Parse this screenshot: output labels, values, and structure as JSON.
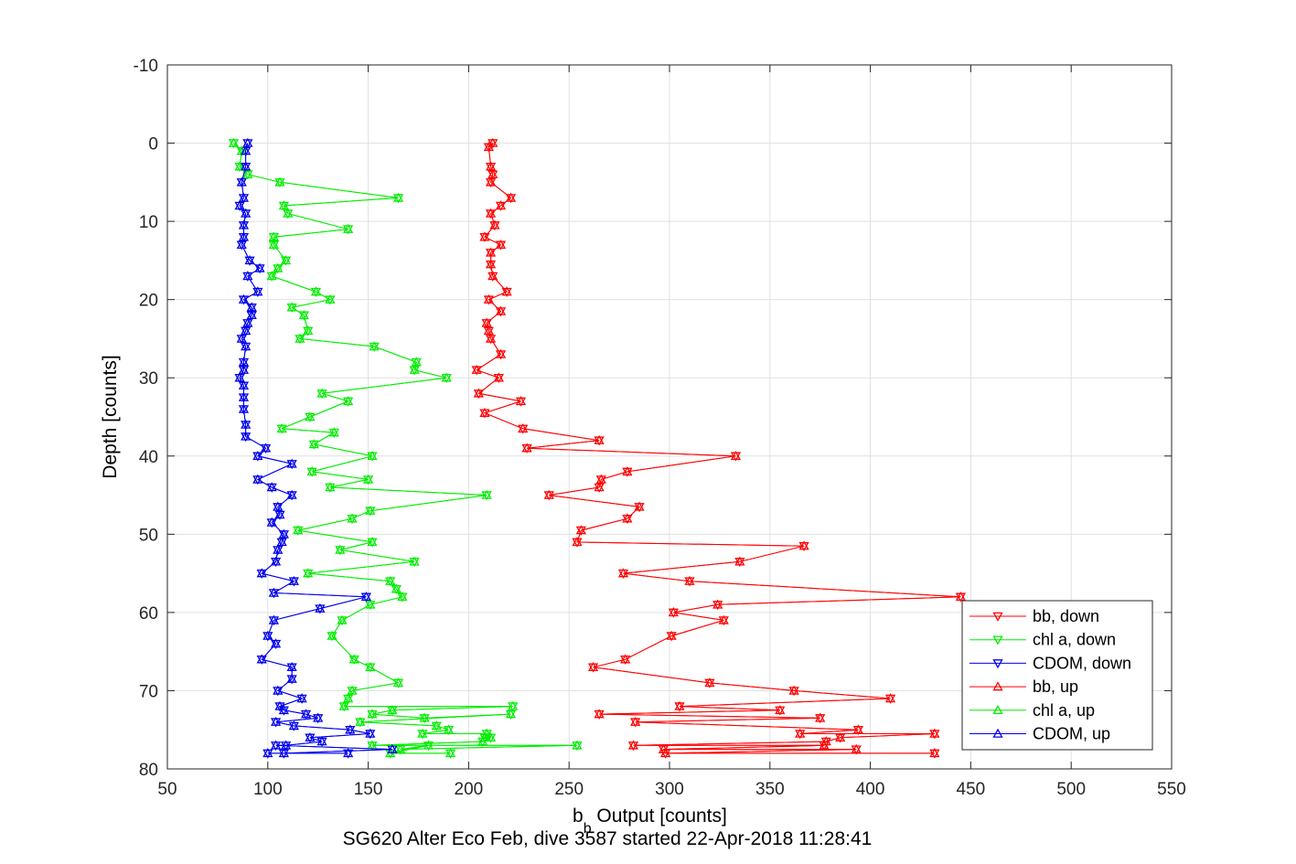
{
  "chart_data": {
    "type": "line",
    "xlabel_main": "b",
    "xlabel_sub": "b",
    "xlabel_rest": " Output [counts]",
    "ylabel": "Depth [counts]",
    "caption": "SG620 Alter Eco Feb, dive 3587 started 22-Apr-2018 11:28:41",
    "xlim": [
      50,
      550
    ],
    "ylim": [
      -10,
      80
    ],
    "y_reversed": true,
    "xticks": [
      50,
      100,
      150,
      200,
      250,
      300,
      350,
      400,
      450,
      500,
      550
    ],
    "yticks": [
      -10,
      0,
      10,
      20,
      30,
      40,
      50,
      60,
      70,
      80
    ],
    "grid": true,
    "legend_position": "bottom-right",
    "series": [
      {
        "name": "bb, down",
        "color": "#ff0000",
        "marker": "triangle-down",
        "points": [
          [
            212,
            0
          ],
          [
            210,
            0.5
          ],
          [
            211,
            3
          ],
          [
            212,
            4
          ],
          [
            211,
            5
          ],
          [
            221,
            7
          ],
          [
            216,
            8
          ],
          [
            211,
            9
          ],
          [
            213,
            10.5
          ],
          [
            208,
            12
          ],
          [
            216,
            13
          ],
          [
            211,
            14
          ],
          [
            211,
            15.5
          ],
          [
            212,
            17
          ],
          [
            219,
            19
          ],
          [
            210,
            20
          ],
          [
            216,
            21.5
          ],
          [
            209,
            23
          ],
          [
            210,
            24
          ],
          [
            211,
            25
          ],
          [
            216,
            27
          ],
          [
            204,
            29
          ],
          [
            215,
            30
          ],
          [
            205,
            32
          ],
          [
            226,
            33
          ],
          [
            208,
            34.5
          ],
          [
            227,
            36.5
          ],
          [
            265,
            38
          ],
          [
            229,
            39
          ],
          [
            333,
            40
          ],
          [
            279,
            42
          ],
          [
            266,
            43
          ],
          [
            265,
            44
          ],
          [
            240,
            45
          ],
          [
            285,
            46.5
          ],
          [
            279,
            48
          ],
          [
            256,
            49.5
          ],
          [
            254,
            51
          ],
          [
            367,
            51.5
          ],
          [
            335,
            53.5
          ],
          [
            277,
            55
          ],
          [
            310,
            56
          ],
          [
            445,
            58
          ],
          [
            324,
            59
          ],
          [
            302,
            60
          ],
          [
            327,
            61
          ],
          [
            301,
            63
          ],
          [
            278,
            66
          ],
          [
            262,
            67
          ],
          [
            320,
            69
          ],
          [
            362,
            70
          ],
          [
            410,
            71
          ],
          [
            305,
            72
          ],
          [
            355,
            72.5
          ],
          [
            265,
            73
          ],
          [
            375,
            73.5
          ],
          [
            283,
            74
          ],
          [
            394,
            75
          ],
          [
            365,
            75.5
          ],
          [
            432,
            75.5
          ],
          [
            385,
            76
          ],
          [
            378,
            76.5
          ],
          [
            282,
            77
          ],
          [
            377,
            77
          ],
          [
            297,
            77.5
          ],
          [
            393,
            77.5
          ],
          [
            298,
            78
          ],
          [
            432,
            78
          ]
        ]
      },
      {
        "name": "chl a, down",
        "color": "#00ee00",
        "marker": "triangle-down",
        "points": [
          [
            83,
            0
          ],
          [
            87,
            1
          ],
          [
            86,
            3
          ],
          [
            90,
            4
          ],
          [
            106,
            5
          ],
          [
            165,
            7
          ],
          [
            108,
            8
          ],
          [
            110,
            9
          ],
          [
            140,
            11
          ],
          [
            103,
            12
          ],
          [
            103,
            13
          ],
          [
            109,
            15
          ],
          [
            105,
            16
          ],
          [
            102,
            17
          ],
          [
            124,
            19
          ],
          [
            131,
            20
          ],
          [
            112,
            21
          ],
          [
            118,
            22
          ],
          [
            120,
            24
          ],
          [
            116,
            25
          ],
          [
            153,
            26
          ],
          [
            174,
            28
          ],
          [
            173,
            29
          ],
          [
            189,
            30
          ],
          [
            127,
            32
          ],
          [
            140,
            33
          ],
          [
            121,
            35
          ],
          [
            107,
            36.5
          ],
          [
            133,
            37
          ],
          [
            123,
            38.5
          ],
          [
            152,
            40
          ],
          [
            122,
            42
          ],
          [
            150,
            43
          ],
          [
            131,
            44
          ],
          [
            209,
            45
          ],
          [
            151,
            47
          ],
          [
            142,
            48
          ],
          [
            115,
            49.5
          ],
          [
            152,
            51
          ],
          [
            136,
            52
          ],
          [
            173,
            53.5
          ],
          [
            120,
            55
          ],
          [
            161,
            56
          ],
          [
            164,
            57
          ],
          [
            167,
            58
          ],
          [
            151,
            59
          ],
          [
            137,
            61
          ],
          [
            132,
            63
          ],
          [
            143,
            66
          ],
          [
            151,
            67
          ],
          [
            165,
            69
          ],
          [
            142,
            70
          ],
          [
            140,
            71
          ],
          [
            138,
            72
          ],
          [
            222,
            72
          ],
          [
            162,
            72.5
          ],
          [
            152,
            73
          ],
          [
            178,
            73.5
          ],
          [
            221,
            73
          ],
          [
            146,
            74
          ],
          [
            184,
            74.5
          ],
          [
            190,
            75
          ],
          [
            177,
            75.5
          ],
          [
            209,
            75.5
          ],
          [
            208,
            76
          ],
          [
            211,
            76
          ],
          [
            207,
            76.5
          ],
          [
            152,
            77
          ],
          [
            254,
            77
          ],
          [
            166,
            77.5
          ],
          [
            180,
            77
          ],
          [
            161,
            78
          ],
          [
            191,
            78
          ]
        ]
      },
      {
        "name": "CDOM, down",
        "color": "#0000ee",
        "marker": "triangle-down",
        "points": [
          [
            90,
            0
          ],
          [
            89,
            1
          ],
          [
            89,
            3
          ],
          [
            87,
            5
          ],
          [
            88,
            7
          ],
          [
            86,
            8
          ],
          [
            89,
            9
          ],
          [
            88,
            10.5
          ],
          [
            88,
            12
          ],
          [
            87,
            13
          ],
          [
            91,
            15
          ],
          [
            96,
            16
          ],
          [
            90,
            17
          ],
          [
            95,
            19
          ],
          [
            88,
            20
          ],
          [
            92,
            21
          ],
          [
            92,
            22
          ],
          [
            90,
            23
          ],
          [
            89,
            24
          ],
          [
            87,
            25
          ],
          [
            89,
            26
          ],
          [
            88,
            28
          ],
          [
            88,
            29
          ],
          [
            86,
            30
          ],
          [
            88,
            31
          ],
          [
            88,
            32.5
          ],
          [
            88,
            34
          ],
          [
            89,
            36
          ],
          [
            89,
            37.5
          ],
          [
            99,
            39
          ],
          [
            95,
            40
          ],
          [
            112,
            41
          ],
          [
            95,
            43
          ],
          [
            102,
            44
          ],
          [
            112,
            45
          ],
          [
            105,
            46.5
          ],
          [
            106,
            47.5
          ],
          [
            102,
            48.5
          ],
          [
            108,
            50
          ],
          [
            107,
            51
          ],
          [
            105,
            52
          ],
          [
            104,
            53.5
          ],
          [
            97,
            55
          ],
          [
            113,
            56
          ],
          [
            103,
            57.5
          ],
          [
            149,
            58
          ],
          [
            126,
            59.5
          ],
          [
            103,
            61
          ],
          [
            100,
            63
          ],
          [
            104,
            64
          ],
          [
            97,
            66
          ],
          [
            112,
            67
          ],
          [
            112,
            68.5
          ],
          [
            105,
            70
          ],
          [
            117,
            71
          ],
          [
            106,
            72
          ],
          [
            108,
            72.5
          ],
          [
            119,
            73
          ],
          [
            125,
            73.5
          ],
          [
            104,
            74
          ],
          [
            113,
            74.5
          ],
          [
            141,
            75
          ],
          [
            151,
            75.5
          ],
          [
            121,
            76
          ],
          [
            127,
            76.5
          ],
          [
            109,
            77
          ],
          [
            104,
            77
          ],
          [
            162,
            77.5
          ],
          [
            108,
            78
          ],
          [
            140,
            78
          ],
          [
            100,
            78
          ]
        ]
      },
      {
        "name": "bb, up",
        "color": "#ff0000",
        "marker": "triangle-up",
        "points": [],
        "follow_of": 0
      },
      {
        "name": "chl a, up",
        "color": "#00ee00",
        "marker": "triangle-up",
        "points": [],
        "follow_of": 1
      },
      {
        "name": "CDOM, up",
        "color": "#0000ee",
        "marker": "triangle-up",
        "points": [],
        "follow_of": 2
      }
    ]
  }
}
